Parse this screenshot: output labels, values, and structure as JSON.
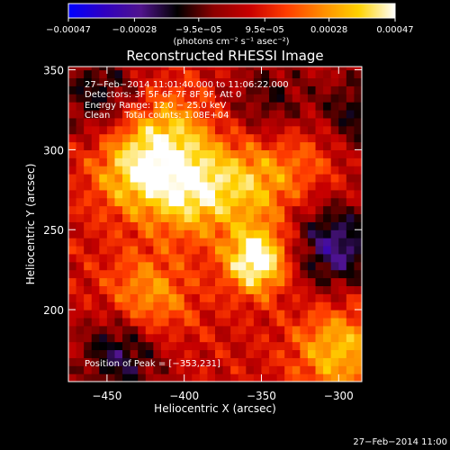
{
  "chart_data": {
    "type": "heatmap",
    "title": "Reconstructed RHESSI Image",
    "xlabel": "Heliocentric X (arcsec)",
    "ylabel": "Heliocentric Y (arcsec)",
    "xlim": [
      -475,
      -285
    ],
    "ylim": [
      155,
      352
    ],
    "x_ticks": [
      -450,
      -400,
      -350,
      -300
    ],
    "x_tick_labels": [
      "−450",
      "−400",
      "−350",
      "−300"
    ],
    "y_ticks": [
      200,
      250,
      300,
      350
    ],
    "y_tick_labels": [
      "200",
      "250",
      "300",
      "350"
    ],
    "colorbar": {
      "min": -0.00047,
      "max": 0.00047,
      "ticks": [
        -0.00047,
        -0.00028,
        -9.5e-05,
        9.5e-05,
        0.00028,
        0.00047
      ],
      "tick_labels": [
        "−0.00047",
        "−0.00028",
        "−9.5e−05",
        "9.5e−05",
        "0.00028",
        "0.00047"
      ],
      "unit_label": "(photons cm⁻² s⁻¹ asec⁻²)",
      "colors": [
        "#0000ff",
        "#3000c0",
        "#50148c",
        "#000000",
        "#8c0000",
        "#c80000",
        "#ff3c00",
        "#ff8c00",
        "#ffd200",
        "#ffffff"
      ]
    },
    "annotations": [
      "27−Feb−2014 11:01:40.000 to 11:06:22.000",
      "Detectors: 3F 5F 6F 7F 8F 9F, Att 0",
      "Energy Range: 12.0 − 25.0 keV",
      "Clean     Total counts: 1.08E+04"
    ],
    "peak_label": "Position of Peak = [−353,231]",
    "peak": [
      -353,
      231
    ],
    "features": [
      {
        "x": -353,
        "y": 231,
        "value": 0.00047
      },
      {
        "x": -395,
        "y": 275,
        "value": 0.00033
      },
      {
        "x": -432,
        "y": 288,
        "value": 0.0003
      },
      {
        "x": -425,
        "y": 205,
        "value": 0.00026
      },
      {
        "x": -300,
        "y": 175,
        "value": 0.00028
      },
      {
        "x": -410,
        "y": 312,
        "value": 0.00022
      },
      {
        "x": -355,
        "y": 280,
        "value": 0.00024
      },
      {
        "x": -315,
        "y": 300,
        "value": 0.00014
      },
      {
        "x": -345,
        "y": 330,
        "value": -0.00018
      },
      {
        "x": -440,
        "y": 175,
        "value": -0.0003
      },
      {
        "x": -302,
        "y": 240,
        "value": -0.00032
      },
      {
        "x": -290,
        "y": 320,
        "value": -0.00024
      },
      {
        "x": -455,
        "y": 335,
        "value": -0.00022
      }
    ]
  },
  "footer_date": "27−Feb−2014 11:00"
}
